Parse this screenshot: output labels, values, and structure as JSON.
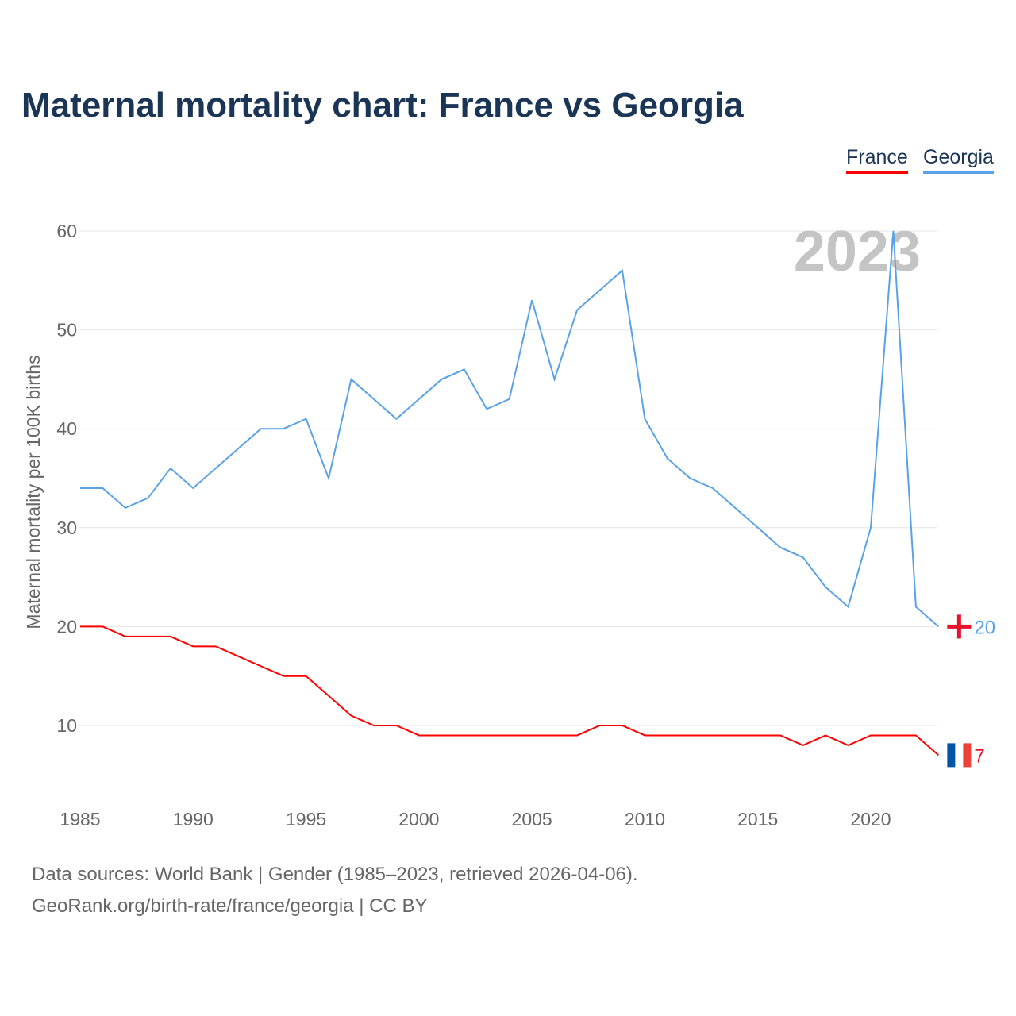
{
  "chart_data": {
    "type": "line",
    "title": "Maternal mortality chart: France vs Georgia",
    "ylabel": "Maternal mortality per 100K births",
    "xlabel": "",
    "year_label": "2023",
    "xlim": [
      1985,
      2023
    ],
    "ylim": [
      3,
      62
    ],
    "x_ticks": [
      "1985",
      "1990",
      "1995",
      "2000",
      "2005",
      "2010",
      "2015",
      "2020"
    ],
    "y_ticks": [
      "10",
      "20",
      "30",
      "40",
      "50",
      "60"
    ],
    "x": [
      1985,
      1986,
      1987,
      1988,
      1989,
      1990,
      1991,
      1992,
      1993,
      1994,
      1995,
      1996,
      1997,
      1998,
      1999,
      2000,
      2001,
      2002,
      2003,
      2004,
      2005,
      2006,
      2007,
      2008,
      2009,
      2010,
      2011,
      2012,
      2013,
      2014,
      2015,
      2016,
      2017,
      2018,
      2019,
      2020,
      2021,
      2022,
      2023
    ],
    "series": [
      {
        "name": "France",
        "color": "#ff0000",
        "end_label": "7",
        "values": [
          20,
          20,
          19,
          19,
          19,
          18,
          18,
          17,
          16,
          15,
          15,
          13,
          11,
          10,
          10,
          9,
          9,
          9,
          9,
          9,
          9,
          9,
          9,
          10,
          10,
          9,
          9,
          9,
          9,
          9,
          9,
          9,
          8,
          9,
          8,
          9,
          9,
          9,
          7
        ]
      },
      {
        "name": "Georgia",
        "color": "#5aa2e8",
        "end_label": "20",
        "values": [
          34,
          34,
          32,
          33,
          36,
          34,
          36,
          38,
          40,
          40,
          41,
          35,
          45,
          43,
          41,
          43,
          45,
          46,
          42,
          43,
          53,
          45,
          52,
          54,
          56,
          41,
          37,
          35,
          34,
          32,
          30,
          28,
          27,
          24,
          22,
          30,
          60,
          22,
          20
        ]
      }
    ],
    "legend": "top-right"
  },
  "footer": {
    "line1": "Data sources: World Bank | Gender (1985–2023, retrieved 2026-04-06).",
    "line2": "GeoRank.org/birth-rate/france/georgia | CC BY"
  }
}
